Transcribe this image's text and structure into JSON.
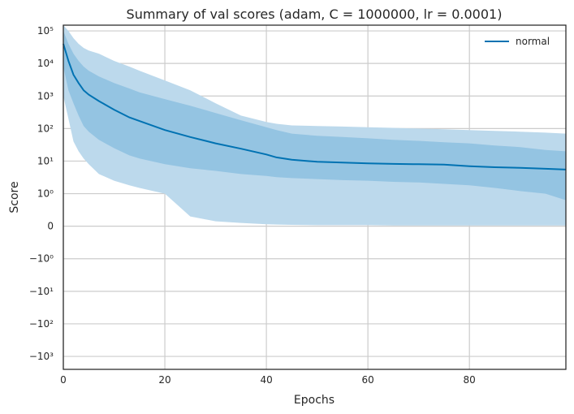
{
  "chart_data": {
    "type": "line",
    "title": "Summary of val scores (adam, C = 1000000, lr = 0.0001)",
    "xlabel": "Epochs",
    "ylabel": "Score",
    "xlim": [
      0,
      99
    ],
    "y_scale": "symlog",
    "y_linthresh": 1,
    "ylim": [
      -2500,
      150000
    ],
    "x_ticks": [
      0,
      20,
      40,
      60,
      80
    ],
    "x_tick_labels": [
      "0",
      "20",
      "40",
      "60",
      "80"
    ],
    "y_ticks": [
      -1000,
      -100,
      -10,
      -1,
      0,
      1,
      10,
      100,
      1000,
      10000,
      100000
    ],
    "y_tick_labels": [
      "−10³",
      "−10²",
      "−10¹",
      "−10⁰",
      "0",
      "10⁰",
      "10¹",
      "10²",
      "10³",
      "10⁴",
      "10⁵"
    ],
    "grid": true,
    "legend_position": "top-right",
    "colors": {
      "line": "#0072b2",
      "outer_band": "#bcd9ec",
      "inner_band": "#8dc0e0",
      "grid": "#cccccc",
      "frame": "#262626"
    },
    "series": [
      {
        "name": "normal",
        "x": [
          0,
          1,
          2,
          3,
          4,
          5,
          7,
          10,
          13,
          15,
          20,
          25,
          30,
          35,
          40,
          42,
          45,
          50,
          55,
          60,
          65,
          70,
          75,
          80,
          85,
          90,
          95,
          99
        ],
        "mean": [
          40000,
          12000,
          4500,
          2500,
          1500,
          1100,
          700,
          380,
          220,
          170,
          90,
          55,
          35,
          24,
          16,
          13,
          11,
          9.5,
          9,
          8.5,
          8.2,
          8,
          7.8,
          7,
          6.5,
          6.2,
          5.8,
          5.5
        ],
        "inner_low": [
          8000,
          1500,
          600,
          250,
          120,
          80,
          45,
          25,
          15,
          12,
          8,
          6,
          5,
          4,
          3.5,
          3.2,
          3,
          2.8,
          2.6,
          2.5,
          2.3,
          2.2,
          2,
          1.8,
          1.5,
          1.2,
          1,
          0.8
        ],
        "inner_high": [
          100000,
          40000,
          20000,
          12000,
          8000,
          6000,
          4000,
          2500,
          1700,
          1300,
          800,
          500,
          300,
          180,
          110,
          90,
          70,
          60,
          55,
          50,
          45,
          42,
          38,
          35,
          30,
          27,
          22,
          20
        ],
        "outer_low": [
          1000,
          200,
          40,
          20,
          12,
          8,
          4,
          2.5,
          1.8,
          1.5,
          1.0,
          0.3,
          0.15,
          0.1,
          0.06,
          0.05,
          0.04,
          0.03,
          0.03,
          0.03,
          0.02,
          0.02,
          0.02,
          0.02,
          0.02,
          0.02,
          0.02,
          0.02
        ],
        "outer_high": [
          150000,
          100000,
          60000,
          40000,
          30000,
          25000,
          20000,
          12000,
          8000,
          6000,
          3000,
          1500,
          600,
          250,
          160,
          140,
          125,
          120,
          115,
          110,
          105,
          100,
          95,
          90,
          85,
          80,
          75,
          70
        ]
      }
    ]
  }
}
